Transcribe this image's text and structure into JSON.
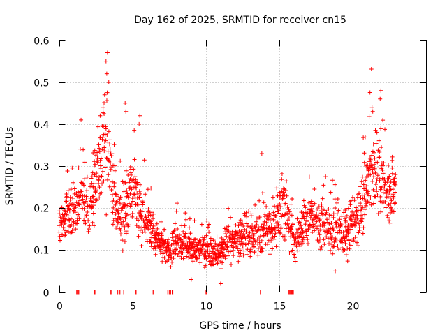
{
  "chart_data": {
    "type": "scatter",
    "title": "Day 162 of 2025, SRMTID for receiver cn15",
    "xlabel": "GPS time / hours",
    "ylabel": "SRMTID / TECUs",
    "xlim": [
      0,
      25
    ],
    "ylim": [
      0,
      0.6
    ],
    "x_ticks": [
      0,
      5,
      10,
      15,
      20
    ],
    "x_tick_labels": [
      "0",
      "5",
      "10",
      "15",
      "20"
    ],
    "y_ticks": [
      0,
      0.1,
      0.2,
      0.3,
      0.4,
      0.5,
      0.6
    ],
    "y_tick_labels": [
      "0",
      "0.1",
      "0.2",
      "0.3",
      "0.4",
      "0.5",
      "0.6"
    ],
    "grid": true,
    "marker": "+",
    "series": [
      {
        "name": "SRMTID",
        "color": "#ff0000",
        "profile_x": [
          0,
          0.5,
          1,
          1.5,
          2,
          2.5,
          3,
          3.3,
          3.6,
          4,
          4.5,
          5,
          5.5,
          6,
          6.5,
          7,
          7.5,
          8,
          8.5,
          9,
          9.5,
          10,
          10.5,
          11,
          11.5,
          12,
          12.5,
          13,
          13.5,
          14,
          14.5,
          15,
          15.5,
          16,
          16.5,
          17,
          17.5,
          18,
          18.5,
          19,
          19.5,
          20,
          20.5,
          21,
          21.5,
          22,
          22.5,
          22.9
        ],
        "profile_mean": [
          0.15,
          0.18,
          0.19,
          0.23,
          0.17,
          0.26,
          0.33,
          0.36,
          0.25,
          0.19,
          0.2,
          0.24,
          0.2,
          0.17,
          0.13,
          0.11,
          0.1,
          0.12,
          0.11,
          0.11,
          0.1,
          0.1,
          0.09,
          0.09,
          0.12,
          0.12,
          0.13,
          0.14,
          0.13,
          0.15,
          0.14,
          0.2,
          0.19,
          0.13,
          0.15,
          0.17,
          0.17,
          0.16,
          0.14,
          0.15,
          0.14,
          0.17,
          0.18,
          0.27,
          0.3,
          0.26,
          0.24,
          0.24
        ],
        "profile_spread": [
          0.04,
          0.04,
          0.05,
          0.07,
          0.05,
          0.08,
          0.1,
          0.11,
          0.07,
          0.05,
          0.08,
          0.07,
          0.07,
          0.05,
          0.04,
          0.03,
          0.03,
          0.04,
          0.03,
          0.03,
          0.03,
          0.03,
          0.03,
          0.03,
          0.04,
          0.04,
          0.04,
          0.05,
          0.04,
          0.05,
          0.05,
          0.06,
          0.06,
          0.05,
          0.05,
          0.05,
          0.05,
          0.05,
          0.05,
          0.05,
          0.05,
          0.05,
          0.06,
          0.08,
          0.09,
          0.07,
          0.06,
          0.06
        ],
        "highlights": [
          [
            3.1,
            0.47
          ],
          [
            3.2,
            0.55
          ],
          [
            3.3,
            0.57
          ],
          [
            3.25,
            0.52
          ],
          [
            3.0,
            0.44
          ],
          [
            4.5,
            0.45
          ],
          [
            4.55,
            0.43
          ],
          [
            5.5,
            0.42
          ],
          [
            5.45,
            0.4
          ],
          [
            1.5,
            0.41
          ],
          [
            2.8,
            0.42
          ],
          [
            13.8,
            0.33
          ],
          [
            21.9,
            0.48
          ],
          [
            21.85,
            0.46
          ],
          [
            21.3,
            0.44
          ],
          [
            21.35,
            0.43
          ],
          [
            9.0,
            0.03
          ],
          [
            11.0,
            0.02
          ],
          [
            18.8,
            0.05
          ]
        ],
        "zero_x": [
          1.2,
          1.25,
          1.3,
          1.35,
          2.4,
          2.45,
          3.5,
          3.55,
          4.0,
          4.1,
          4.15,
          4.4,
          5.2,
          5.25,
          6.4,
          6.45,
          7.4,
          7.5,
          7.55,
          7.6,
          7.7,
          7.75,
          10.0,
          10.05,
          13.7,
          15.6,
          15.65,
          15.7,
          15.75,
          15.8,
          15.85,
          15.9,
          15.95
        ]
      }
    ]
  }
}
